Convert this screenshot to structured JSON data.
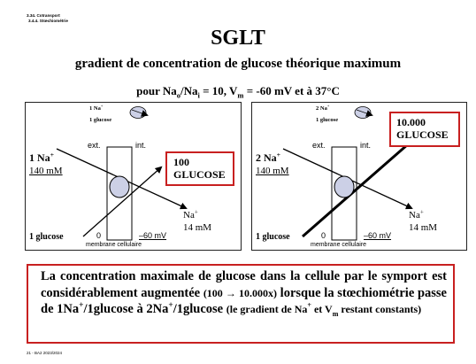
{
  "breadcrumb": [
    "3.34. Cotransport",
    "3.4.4. Stœchiométrie"
  ],
  "title": "SGLT",
  "subtitle": "gradient de concentration de glucose théorique maximum",
  "conditions": {
    "prefix": "pour Na",
    "o_sub": "o",
    "slash": "/Na",
    "i_sub": "i",
    "mid": " = 10, V",
    "m_sub": "m",
    "suffix": " = -60 mV et à 37°C"
  },
  "panels": [
    {
      "stoich_na": "1 Na",
      "stoich_plus": "+",
      "stoich_glucose": "1 glucose",
      "ext_label": "ext.",
      "int_label": "int.",
      "na_out": "1 Na",
      "na_out_sup": "+",
      "na_out_conc": "140 mM",
      "glucose_out": "1 glucose",
      "zero_label": "0",
      "voltage_label": "–60 mV",
      "membrane_label": "membrane cellulaire",
      "na_in": "Na",
      "na_in_sup": "+",
      "na_in_conc": "14 mM",
      "result_line1": "100",
      "result_line2": "GLUCOSE"
    },
    {
      "stoich_na": "2 Na",
      "stoich_plus": "+",
      "stoich_glucose": "1 glucose",
      "ext_label": "ext.",
      "int_label": "int.",
      "na_out": "2 Na",
      "na_out_sup": "+",
      "na_out_conc": "140 mM",
      "glucose_out": "1 glucose",
      "zero_label": "0",
      "voltage_label": "–60 mV",
      "membrane_label": "membrane cellulaire",
      "na_in": "Na",
      "na_in_sup": "+",
      "na_in_conc": "14 mM",
      "result_line1": "10.000",
      "result_line2": "GLUCOSE"
    }
  ],
  "conclusion": {
    "part1": "La concentration maximale de glucose dans la cellule par le symport est considérablement augmentée ",
    "part2": "(100 → 10.000x)",
    "part3": " lorsque la stœchiométrie passe de 1Na",
    "sup1": "+",
    "part4": "/1glucose à 2Na",
    "sup2": "+",
    "part5": "/1glucose ",
    "part6": "(le gradient de Na",
    "sup3": "+",
    "part7": " et V",
    "sub1": "m",
    "part8": " restant constants)"
  },
  "footer": "21 - BA2 2023/2024",
  "colors": {
    "red": "#c82020"
  }
}
